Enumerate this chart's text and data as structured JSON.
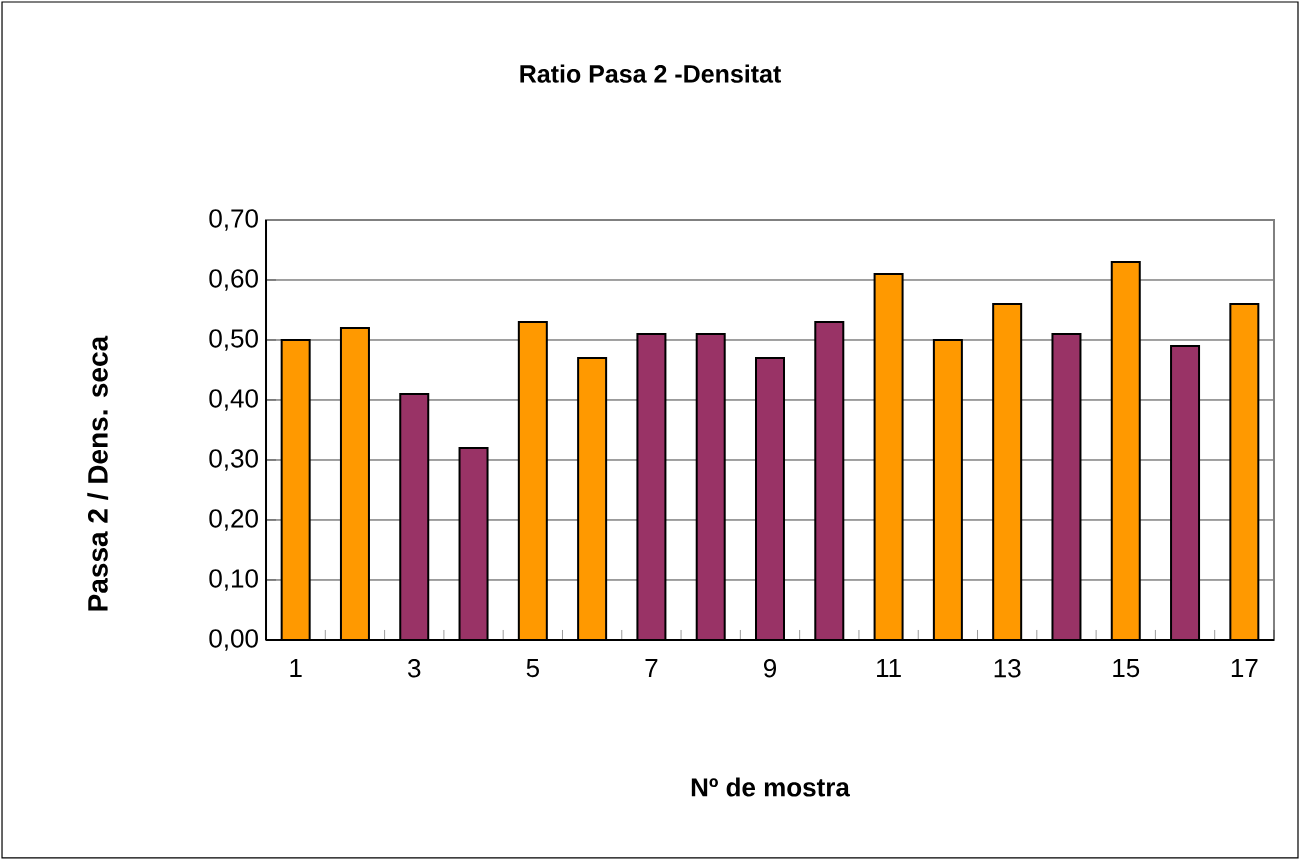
{
  "chart_data": {
    "type": "bar",
    "title": "Ratio Pasa 2 -Densitat",
    "xlabel": "Nº de mostra",
    "ylabel": "Passa 2 / Dens. seca",
    "categories": [
      "1",
      null,
      "3",
      null,
      "5",
      null,
      "7",
      null,
      "9",
      null,
      "11",
      null,
      "13",
      null,
      "15",
      null,
      "17"
    ],
    "values": [
      0.5,
      0.52,
      0.41,
      0.32,
      0.53,
      0.47,
      0.51,
      0.51,
      0.47,
      0.53,
      0.61,
      0.5,
      0.56,
      0.51,
      0.63,
      0.49,
      0.56
    ],
    "colors": [
      "#ff9900",
      "#ff9900",
      "#993366",
      "#993366",
      "#ff9900",
      "#ff9900",
      "#993366",
      "#993366",
      "#993366",
      "#993366",
      "#ff9900",
      "#ff9900",
      "#ff9900",
      "#993366",
      "#ff9900",
      "#993366",
      "#ff9900"
    ],
    "ylim": [
      0,
      0.7
    ],
    "yticks": [
      {
        "value": 0,
        "label": "0,00"
      },
      {
        "value": 0.1,
        "label": "0,10"
      },
      {
        "value": 0.2,
        "label": "0,20"
      },
      {
        "value": 0.3,
        "label": "0,30"
      },
      {
        "value": 0.4,
        "label": "0,40"
      },
      {
        "value": 0.5,
        "label": "0,50"
      },
      {
        "value": 0.6,
        "label": "0,60"
      },
      {
        "value": 0.7,
        "label": "0,70"
      }
    ],
    "grid": "y"
  }
}
